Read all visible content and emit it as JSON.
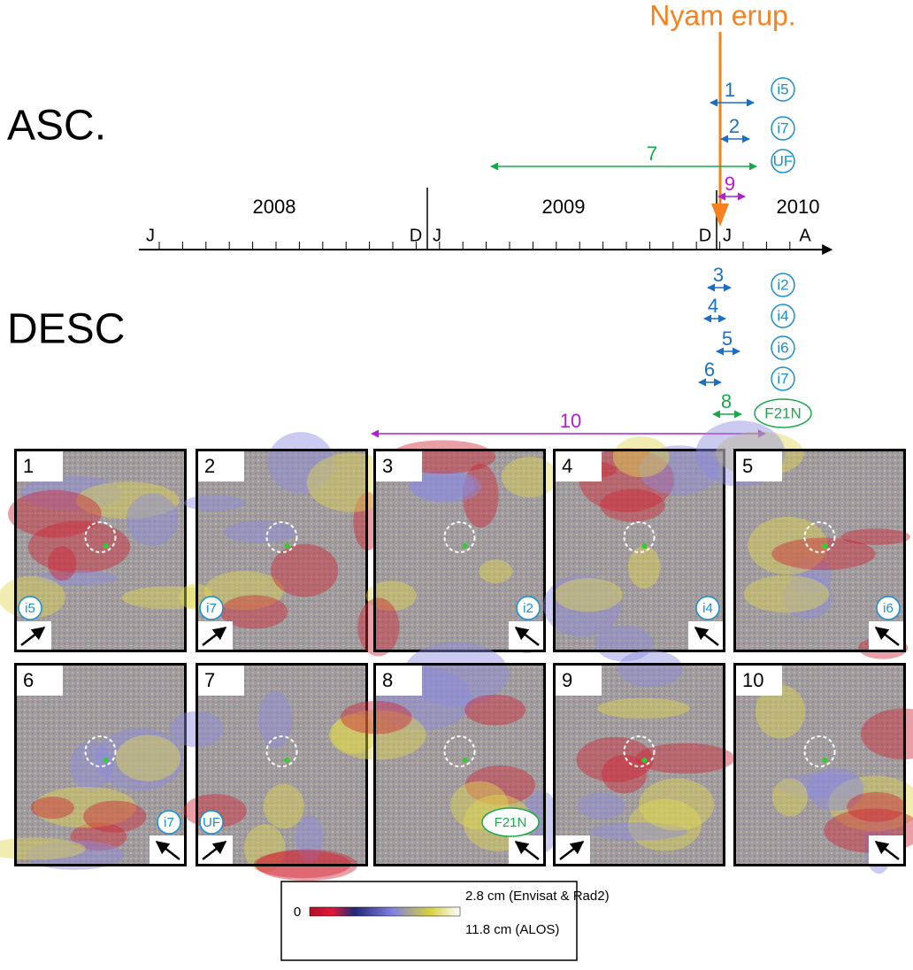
{
  "side_labels": {
    "asc": "ASC.",
    "desc": "DESC"
  },
  "eruption": "Nyam erup.",
  "years": [
    "2008",
    "2009",
    "2010"
  ],
  "months": [
    "J",
    "D",
    "J",
    "D",
    "J",
    "A"
  ],
  "intervals": [
    {
      "label": "1",
      "track": "i5"
    },
    {
      "label": "2",
      "track": "i7"
    },
    {
      "label": "7",
      "track": "UF"
    },
    {
      "label": "9"
    },
    {
      "label": "3",
      "track": "i2"
    },
    {
      "label": "4",
      "track": "i4"
    },
    {
      "label": "5",
      "track": "i6"
    },
    {
      "label": "6",
      "track": "i7"
    },
    {
      "label": "8",
      "track": "F21N"
    },
    {
      "label": "10"
    }
  ],
  "panels": [
    {
      "label": "1",
      "track": "i5"
    },
    {
      "label": "2",
      "track": "i7"
    },
    {
      "label": "3",
      "track": "i2"
    },
    {
      "label": "4",
      "track": "i4"
    },
    {
      "label": "5",
      "track": "i6"
    },
    {
      "label": "6",
      "track": "i7"
    },
    {
      "label": "7",
      "track": "UF"
    },
    {
      "label": "8",
      "track": "F21N"
    },
    {
      "label": "9"
    },
    {
      "label": "10"
    }
  ],
  "colorbar": {
    "min": "0",
    "envisat": "2.8 cm (Envisat & Rad2)",
    "alos": "11.8 cm (ALOS)"
  }
}
